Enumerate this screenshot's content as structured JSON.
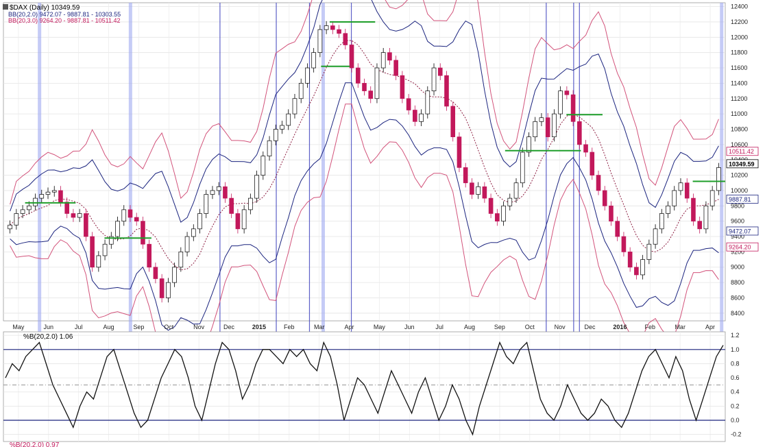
{
  "chart_data": [
    {
      "type": "candlestick",
      "title": "$DAX (Daily) 10349.59",
      "x_labels": [
        "May",
        "Jun",
        "Jul",
        "Aug",
        "Sep",
        "Oct",
        "Nov",
        "Dec",
        "2015",
        "Feb",
        "Mar",
        "Apr",
        "May",
        "Jun",
        "Jul",
        "Aug",
        "Sep",
        "Oct",
        "Nov",
        "Dec",
        "2016",
        "Feb",
        "Mar",
        "Apr"
      ],
      "y_ticks": [
        8400,
        8600,
        8800,
        9000,
        9200,
        9400,
        9600,
        9800,
        10000,
        10200,
        10400,
        10600,
        10800,
        11000,
        11200,
        11400,
        11600,
        11800,
        12000,
        12200,
        12400
      ],
      "ylim": [
        8300,
        12450
      ],
      "legend": [
        {
          "label": "BB(20,2.0) 9472.07 - 9887.81 - 10303.55",
          "color": "#1a237e"
        },
        {
          "label": "BB(20,3.0) 9264.20 - 9887.81 - 10511.42",
          "color": "#c2185b"
        }
      ],
      "last_price": "10349.59",
      "value_badges": [
        {
          "label": "10511.42",
          "value": 10511.42,
          "color": "#c2185b"
        },
        {
          "label": "10349.59",
          "value": 10349.59,
          "color": "#000000"
        },
        {
          "label": "9887.81",
          "value": 9887.81,
          "color": "#1a237e"
        },
        {
          "label": "9472.07",
          "value": 9472.07,
          "color": "#1a237e"
        },
        {
          "label": "9264.20",
          "value": 9264.2,
          "color": "#c2185b"
        }
      ],
      "close_series": [
        9550,
        9700,
        9750,
        9800,
        9900,
        9950,
        9980,
        10000,
        9850,
        9700,
        9650,
        9700,
        9400,
        9000,
        9150,
        9300,
        9400,
        9600,
        9750,
        9650,
        9600,
        9300,
        9000,
        8850,
        8600,
        8800,
        9000,
        9200,
        9400,
        9500,
        9700,
        9950,
        10000,
        10050,
        9900,
        9700,
        9500,
        9750,
        9900,
        10200,
        10450,
        10650,
        10800,
        10850,
        11000,
        11200,
        11400,
        11600,
        11800,
        12100,
        12150,
        12100,
        12050,
        11900,
        11600,
        11400,
        11300,
        11200,
        11600,
        11800,
        11700,
        11500,
        11200,
        11050,
        10900,
        11000,
        11300,
        11600,
        11500,
        11100,
        10700,
        10300,
        10100,
        9950,
        10050,
        9900,
        9700,
        9600,
        9800,
        9900,
        10100,
        10500,
        10700,
        10900,
        10950,
        10700,
        11000,
        11300,
        11250,
        10900,
        10600,
        10500,
        10200,
        10000,
        9800,
        9600,
        9400,
        9200,
        9000,
        8900,
        9100,
        9300,
        9500,
        9700,
        9800,
        10000,
        10100,
        9900,
        9600,
        9500,
        9800,
        10000,
        10300
      ],
      "support_lines": [
        {
          "value": 9840
        },
        {
          "value": 9380
        },
        {
          "value": 11620
        },
        {
          "value": 12200
        },
        {
          "value": 10520
        },
        {
          "value": 10990
        },
        {
          "value": 10120
        }
      ]
    },
    {
      "type": "line",
      "title": "%B(20,2.0) 1.06",
      "y_ticks": [
        -0.2,
        0.0,
        0.2,
        0.4,
        0.6,
        0.8,
        1.0,
        1.2
      ],
      "ylim": [
        -0.3,
        1.25
      ],
      "reference_lines": [
        0.0,
        0.5,
        1.0
      ],
      "values": [
        0.6,
        0.8,
        0.7,
        0.9,
        1.0,
        1.1,
        0.8,
        0.5,
        0.3,
        0.1,
        -0.1,
        0.2,
        0.4,
        0.3,
        0.6,
        0.9,
        1.0,
        0.7,
        0.4,
        0.1,
        -0.1,
        0.0,
        0.3,
        0.6,
        0.8,
        1.0,
        0.9,
        0.6,
        0.2,
        0.0,
        0.4,
        0.8,
        1.1,
        1.0,
        0.7,
        0.3,
        0.5,
        0.8,
        1.0,
        1.0,
        0.9,
        0.8,
        1.0,
        0.9,
        1.0,
        0.8,
        0.7,
        1.1,
        0.9,
        0.5,
        0.0,
        0.3,
        0.6,
        0.5,
        0.3,
        0.1,
        0.4,
        0.7,
        0.5,
        0.3,
        0.1,
        0.4,
        0.6,
        0.3,
        0.0,
        0.2,
        0.5,
        0.3,
        0.0,
        -0.2,
        0.2,
        0.5,
        0.8,
        1.1,
        0.9,
        0.8,
        1.0,
        1.1,
        0.7,
        0.3,
        0.1,
        0.0,
        0.2,
        0.5,
        0.3,
        0.1,
        0.0,
        0.1,
        0.3,
        0.2,
        0.0,
        -0.1,
        0.1,
        0.4,
        0.7,
        0.9,
        1.0,
        0.8,
        0.6,
        0.9,
        0.7,
        0.3,
        0.0,
        0.3,
        0.6,
        0.9,
        1.06
      ]
    },
    {
      "type": "line",
      "title": "%B(20,2.0) 0.97"
    }
  ]
}
